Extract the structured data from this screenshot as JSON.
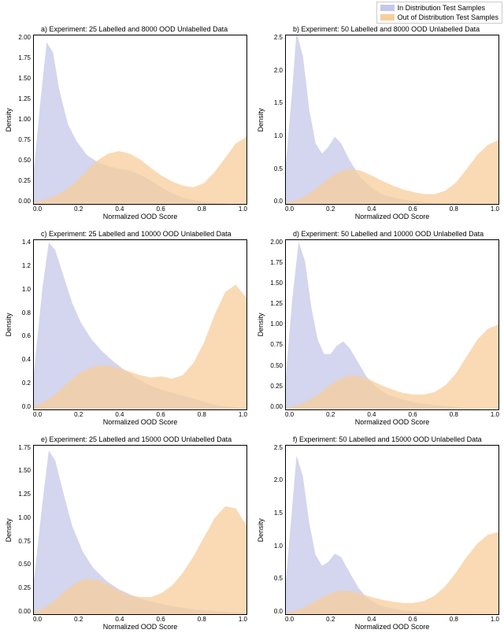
{
  "legend": {
    "items": [
      {
        "label": "In Distribution Test Samples",
        "color": "#c5c7e8"
      },
      {
        "label": "Out of Distribution Test Samples",
        "color": "#f7ce9c"
      }
    ],
    "border_color": "#cccccc"
  },
  "global": {
    "background_color": "#ffffff",
    "axis_color": "#000000",
    "tick_fontsize": 8,
    "label_fontsize": 9,
    "title_fontsize": 9,
    "in_dist_color": "#c5c7e8",
    "out_dist_color": "#f7ce9c",
    "fill_opacity": 0.75,
    "xlabel": "Normalized OOD Score",
    "ylabel": "Density",
    "xlim": [
      0.0,
      1.0
    ],
    "xticks": [
      "0.0",
      "0.2",
      "0.4",
      "0.6",
      "0.8",
      "1.0"
    ]
  },
  "panels": [
    {
      "id": "a",
      "title": "a) Experiment: 25 Labelled and 8000 OOD Unlabelled Data",
      "ylim": [
        0.0,
        2.0
      ],
      "yticks": [
        "2.00",
        "1.75",
        "1.50",
        "1.25",
        "1.00",
        "0.75",
        "0.50",
        "0.25",
        "0.00"
      ],
      "in_dist": [
        [
          0.0,
          0.4
        ],
        [
          0.03,
          1.2
        ],
        [
          0.06,
          1.92
        ],
        [
          0.09,
          1.8
        ],
        [
          0.12,
          1.35
        ],
        [
          0.16,
          0.95
        ],
        [
          0.2,
          0.75
        ],
        [
          0.25,
          0.58
        ],
        [
          0.3,
          0.5
        ],
        [
          0.35,
          0.45
        ],
        [
          0.4,
          0.42
        ],
        [
          0.45,
          0.4
        ],
        [
          0.5,
          0.35
        ],
        [
          0.55,
          0.28
        ],
        [
          0.6,
          0.2
        ],
        [
          0.65,
          0.13
        ],
        [
          0.7,
          0.08
        ],
        [
          0.75,
          0.05
        ],
        [
          0.8,
          0.03
        ],
        [
          0.85,
          0.02
        ],
        [
          0.9,
          0.01
        ],
        [
          0.95,
          0.0
        ],
        [
          1.0,
          0.0
        ]
      ],
      "out_dist": [
        [
          0.0,
          0.02
        ],
        [
          0.05,
          0.05
        ],
        [
          0.1,
          0.1
        ],
        [
          0.15,
          0.17
        ],
        [
          0.2,
          0.27
        ],
        [
          0.25,
          0.4
        ],
        [
          0.3,
          0.52
        ],
        [
          0.35,
          0.6
        ],
        [
          0.4,
          0.63
        ],
        [
          0.45,
          0.6
        ],
        [
          0.5,
          0.53
        ],
        [
          0.55,
          0.43
        ],
        [
          0.6,
          0.34
        ],
        [
          0.65,
          0.27
        ],
        [
          0.7,
          0.22
        ],
        [
          0.75,
          0.2
        ],
        [
          0.8,
          0.25
        ],
        [
          0.85,
          0.38
        ],
        [
          0.9,
          0.55
        ],
        [
          0.95,
          0.72
        ],
        [
          1.0,
          0.8
        ]
      ]
    },
    {
      "id": "b",
      "title": "b) Experiment: 50 Labelled and 8000 OOD Unlabelled Data",
      "ylim": [
        0.0,
        2.5
      ],
      "yticks": [
        "2.5",
        "2.0",
        "1.5",
        "1.0",
        "0.5",
        "0.0"
      ],
      "in_dist": [
        [
          0.0,
          0.6
        ],
        [
          0.03,
          1.7
        ],
        [
          0.05,
          2.55
        ],
        [
          0.08,
          2.2
        ],
        [
          0.11,
          1.4
        ],
        [
          0.14,
          0.9
        ],
        [
          0.17,
          0.75
        ],
        [
          0.2,
          0.85
        ],
        [
          0.23,
          1.0
        ],
        [
          0.26,
          0.9
        ],
        [
          0.3,
          0.65
        ],
        [
          0.35,
          0.4
        ],
        [
          0.4,
          0.25
        ],
        [
          0.45,
          0.15
        ],
        [
          0.5,
          0.1
        ],
        [
          0.55,
          0.07
        ],
        [
          0.6,
          0.05
        ],
        [
          0.65,
          0.03
        ],
        [
          0.7,
          0.02
        ],
        [
          0.8,
          0.01
        ],
        [
          0.9,
          0.0
        ],
        [
          1.0,
          0.0
        ]
      ],
      "out_dist": [
        [
          0.0,
          0.02
        ],
        [
          0.05,
          0.06
        ],
        [
          0.1,
          0.14
        ],
        [
          0.15,
          0.25
        ],
        [
          0.2,
          0.38
        ],
        [
          0.25,
          0.48
        ],
        [
          0.3,
          0.52
        ],
        [
          0.35,
          0.5
        ],
        [
          0.4,
          0.43
        ],
        [
          0.45,
          0.35
        ],
        [
          0.5,
          0.28
        ],
        [
          0.55,
          0.22
        ],
        [
          0.6,
          0.18
        ],
        [
          0.65,
          0.15
        ],
        [
          0.7,
          0.15
        ],
        [
          0.75,
          0.2
        ],
        [
          0.8,
          0.32
        ],
        [
          0.85,
          0.52
        ],
        [
          0.9,
          0.73
        ],
        [
          0.95,
          0.88
        ],
        [
          1.0,
          0.95
        ]
      ]
    },
    {
      "id": "c",
      "title": "c) Experiment: 25 Labelled and 10000 OOD Unlabelled Data",
      "ylim": [
        0.0,
        1.4
      ],
      "yticks": [
        "1.4",
        "1.2",
        "1.0",
        "0.8",
        "0.6",
        "0.4",
        "0.2",
        "0.0"
      ],
      "in_dist": [
        [
          0.0,
          0.3
        ],
        [
          0.04,
          1.0
        ],
        [
          0.07,
          1.38
        ],
        [
          0.1,
          1.32
        ],
        [
          0.14,
          1.1
        ],
        [
          0.18,
          0.88
        ],
        [
          0.22,
          0.72
        ],
        [
          0.27,
          0.58
        ],
        [
          0.32,
          0.48
        ],
        [
          0.37,
          0.4
        ],
        [
          0.42,
          0.33
        ],
        [
          0.48,
          0.26
        ],
        [
          0.54,
          0.2
        ],
        [
          0.6,
          0.16
        ],
        [
          0.66,
          0.13
        ],
        [
          0.72,
          0.1
        ],
        [
          0.78,
          0.07
        ],
        [
          0.84,
          0.04
        ],
        [
          0.9,
          0.02
        ],
        [
          0.96,
          0.01
        ],
        [
          1.0,
          0.0
        ]
      ],
      "out_dist": [
        [
          0.0,
          0.02
        ],
        [
          0.05,
          0.06
        ],
        [
          0.1,
          0.12
        ],
        [
          0.15,
          0.2
        ],
        [
          0.2,
          0.28
        ],
        [
          0.25,
          0.33
        ],
        [
          0.3,
          0.36
        ],
        [
          0.35,
          0.36
        ],
        [
          0.4,
          0.34
        ],
        [
          0.45,
          0.31
        ],
        [
          0.5,
          0.28
        ],
        [
          0.55,
          0.26
        ],
        [
          0.6,
          0.27
        ],
        [
          0.65,
          0.25
        ],
        [
          0.7,
          0.28
        ],
        [
          0.75,
          0.38
        ],
        [
          0.8,
          0.55
        ],
        [
          0.85,
          0.78
        ],
        [
          0.9,
          0.97
        ],
        [
          0.95,
          1.03
        ],
        [
          1.0,
          0.92
        ]
      ]
    },
    {
      "id": "d",
      "title": "d) Experiment: 50 Labelled and 10000 OOD Unlabelled Data",
      "ylim": [
        0.0,
        2.0
      ],
      "yticks": [
        "2.00",
        "1.75",
        "1.50",
        "1.25",
        "1.00",
        "0.75",
        "0.50",
        "0.25",
        "0.00"
      ],
      "in_dist": [
        [
          0.0,
          0.4
        ],
        [
          0.03,
          1.3
        ],
        [
          0.06,
          1.98
        ],
        [
          0.09,
          1.75
        ],
        [
          0.12,
          1.2
        ],
        [
          0.15,
          0.82
        ],
        [
          0.18,
          0.65
        ],
        [
          0.21,
          0.65
        ],
        [
          0.24,
          0.75
        ],
        [
          0.27,
          0.8
        ],
        [
          0.3,
          0.72
        ],
        [
          0.34,
          0.55
        ],
        [
          0.38,
          0.38
        ],
        [
          0.43,
          0.25
        ],
        [
          0.48,
          0.17
        ],
        [
          0.54,
          0.12
        ],
        [
          0.6,
          0.08
        ],
        [
          0.68,
          0.05
        ],
        [
          0.76,
          0.03
        ],
        [
          0.85,
          0.01
        ],
        [
          0.92,
          0.0
        ],
        [
          1.0,
          0.0
        ]
      ],
      "out_dist": [
        [
          0.0,
          0.01
        ],
        [
          0.05,
          0.04
        ],
        [
          0.1,
          0.09
        ],
        [
          0.15,
          0.17
        ],
        [
          0.2,
          0.27
        ],
        [
          0.25,
          0.35
        ],
        [
          0.3,
          0.4
        ],
        [
          0.35,
          0.39
        ],
        [
          0.4,
          0.34
        ],
        [
          0.45,
          0.28
        ],
        [
          0.5,
          0.23
        ],
        [
          0.55,
          0.19
        ],
        [
          0.6,
          0.17
        ],
        [
          0.65,
          0.17
        ],
        [
          0.7,
          0.2
        ],
        [
          0.75,
          0.28
        ],
        [
          0.8,
          0.42
        ],
        [
          0.85,
          0.62
        ],
        [
          0.9,
          0.82
        ],
        [
          0.95,
          0.95
        ],
        [
          1.0,
          1.0
        ]
      ]
    },
    {
      "id": "e",
      "title": "e) Experiment: 25 Labelled and 15000 OOD Unlabelled Data",
      "ylim": [
        0.0,
        1.75
      ],
      "yticks": [
        "1.75",
        "1.50",
        "1.25",
        "1.00",
        "0.75",
        "0.50",
        "0.25",
        "0.00"
      ],
      "in_dist": [
        [
          0.0,
          0.35
        ],
        [
          0.04,
          1.15
        ],
        [
          0.07,
          1.7
        ],
        [
          0.1,
          1.6
        ],
        [
          0.14,
          1.25
        ],
        [
          0.18,
          0.92
        ],
        [
          0.23,
          0.65
        ],
        [
          0.28,
          0.48
        ],
        [
          0.34,
          0.35
        ],
        [
          0.4,
          0.26
        ],
        [
          0.46,
          0.2
        ],
        [
          0.52,
          0.15
        ],
        [
          0.58,
          0.12
        ],
        [
          0.64,
          0.09
        ],
        [
          0.7,
          0.07
        ],
        [
          0.76,
          0.05
        ],
        [
          0.82,
          0.04
        ],
        [
          0.88,
          0.03
        ],
        [
          0.94,
          0.02
        ],
        [
          1.0,
          0.01
        ]
      ],
      "out_dist": [
        [
          0.0,
          0.02
        ],
        [
          0.05,
          0.07
        ],
        [
          0.1,
          0.15
        ],
        [
          0.15,
          0.25
        ],
        [
          0.2,
          0.33
        ],
        [
          0.25,
          0.37
        ],
        [
          0.3,
          0.36
        ],
        [
          0.35,
          0.31
        ],
        [
          0.4,
          0.25
        ],
        [
          0.45,
          0.2
        ],
        [
          0.5,
          0.18
        ],
        [
          0.55,
          0.18
        ],
        [
          0.6,
          0.22
        ],
        [
          0.65,
          0.3
        ],
        [
          0.7,
          0.43
        ],
        [
          0.75,
          0.6
        ],
        [
          0.8,
          0.8
        ],
        [
          0.85,
          1.0
        ],
        [
          0.9,
          1.12
        ],
        [
          0.95,
          1.1
        ],
        [
          1.0,
          0.92
        ]
      ]
    },
    {
      "id": "f",
      "title": "f) Experiment: 50 Labelled and 15000 OOD Unlabelled Data",
      "ylim": [
        0.0,
        2.5
      ],
      "yticks": [
        "2.5",
        "2.0",
        "1.5",
        "1.0",
        "0.5",
        "0.0"
      ],
      "in_dist": [
        [
          0.0,
          0.5
        ],
        [
          0.03,
          1.6
        ],
        [
          0.05,
          2.35
        ],
        [
          0.08,
          2.05
        ],
        [
          0.11,
          1.35
        ],
        [
          0.14,
          0.88
        ],
        [
          0.17,
          0.72
        ],
        [
          0.2,
          0.78
        ],
        [
          0.23,
          0.9
        ],
        [
          0.26,
          0.85
        ],
        [
          0.3,
          0.62
        ],
        [
          0.34,
          0.4
        ],
        [
          0.38,
          0.25
        ],
        [
          0.43,
          0.15
        ],
        [
          0.48,
          0.1
        ],
        [
          0.55,
          0.06
        ],
        [
          0.62,
          0.04
        ],
        [
          0.7,
          0.02
        ],
        [
          0.8,
          0.01
        ],
        [
          0.9,
          0.0
        ],
        [
          1.0,
          0.0
        ]
      ],
      "out_dist": [
        [
          0.0,
          0.02
        ],
        [
          0.05,
          0.06
        ],
        [
          0.1,
          0.13
        ],
        [
          0.15,
          0.22
        ],
        [
          0.2,
          0.3
        ],
        [
          0.25,
          0.35
        ],
        [
          0.3,
          0.35
        ],
        [
          0.35,
          0.31
        ],
        [
          0.4,
          0.26
        ],
        [
          0.45,
          0.22
        ],
        [
          0.5,
          0.19
        ],
        [
          0.55,
          0.17
        ],
        [
          0.6,
          0.17
        ],
        [
          0.65,
          0.2
        ],
        [
          0.7,
          0.28
        ],
        [
          0.75,
          0.42
        ],
        [
          0.8,
          0.62
        ],
        [
          0.85,
          0.85
        ],
        [
          0.9,
          1.05
        ],
        [
          0.95,
          1.18
        ],
        [
          1.0,
          1.22
        ]
      ]
    }
  ]
}
